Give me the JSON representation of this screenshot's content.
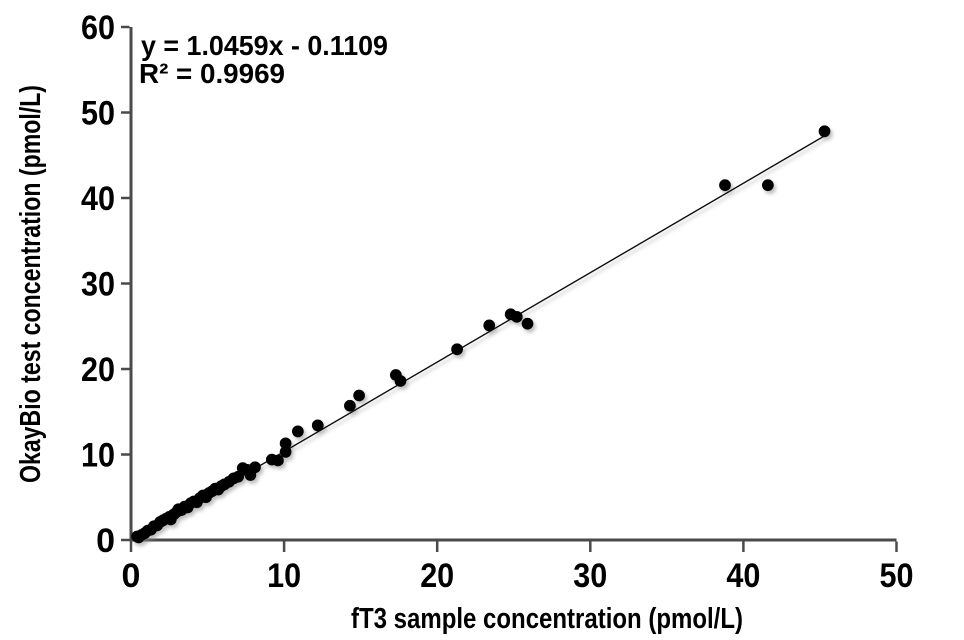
{
  "figure": {
    "background": "#ffffff"
  },
  "chart_data": {
    "type": "scatter",
    "title": "",
    "xlabel": "fT3 sample concentration (pmol/L)",
    "ylabel": "OkayBio test concentration (pmol/L)",
    "xlim": [
      0,
      50
    ],
    "ylim": [
      0,
      60
    ],
    "x_ticks": [
      0,
      10,
      20,
      30,
      40,
      50
    ],
    "y_ticks": [
      0,
      10,
      20,
      30,
      40,
      50,
      60
    ],
    "grid": false,
    "legend": "none",
    "point_color": "#000000",
    "axis_color": "#4a4a4a",
    "text_color": "#000000",
    "points": [
      [
        0.4,
        0.4
      ],
      [
        0.5,
        0.3
      ],
      [
        0.7,
        0.6
      ],
      [
        0.9,
        0.8
      ],
      [
        1.1,
        1.1
      ],
      [
        1.3,
        1.2
      ],
      [
        1.5,
        1.6
      ],
      [
        1.7,
        1.7
      ],
      [
        1.9,
        2.1
      ],
      [
        2.1,
        2.3
      ],
      [
        2.3,
        2.5
      ],
      [
        2.5,
        2.7
      ],
      [
        2.6,
        2.4
      ],
      [
        2.8,
        3.0
      ],
      [
        3.0,
        3.3
      ],
      [
        3.1,
        3.6
      ],
      [
        3.3,
        3.5
      ],
      [
        3.5,
        3.9
      ],
      [
        3.7,
        3.8
      ],
      [
        3.9,
        4.3
      ],
      [
        4.1,
        4.5
      ],
      [
        4.3,
        4.4
      ],
      [
        4.5,
        4.9
      ],
      [
        4.7,
        5.2
      ],
      [
        4.9,
        5.0
      ],
      [
        5.1,
        5.5
      ],
      [
        5.3,
        5.7
      ],
      [
        5.5,
        6.0
      ],
      [
        5.7,
        5.9
      ],
      [
        5.9,
        6.3
      ],
      [
        6.1,
        6.5
      ],
      [
        6.4,
        6.8
      ],
      [
        6.7,
        7.2
      ],
      [
        7.0,
        7.4
      ],
      [
        7.3,
        8.4
      ],
      [
        7.6,
        8.2
      ],
      [
        7.8,
        7.6
      ],
      [
        8.1,
        8.5
      ],
      [
        9.2,
        9.4
      ],
      [
        9.6,
        9.3
      ],
      [
        10.1,
        10.3
      ],
      [
        10.1,
        11.3
      ],
      [
        10.9,
        12.7
      ],
      [
        12.2,
        13.4
      ],
      [
        14.3,
        15.7
      ],
      [
        14.9,
        16.9
      ],
      [
        17.3,
        19.3
      ],
      [
        17.6,
        18.6
      ],
      [
        21.3,
        22.3
      ],
      [
        23.4,
        25.1
      ],
      [
        24.8,
        26.4
      ],
      [
        25.2,
        26.1
      ],
      [
        25.9,
        25.3
      ],
      [
        38.8,
        41.5
      ],
      [
        41.6,
        41.5
      ],
      [
        45.3,
        47.8
      ]
    ],
    "trendline": {
      "type": "linear",
      "slope": 1.0459,
      "intercept": -0.1109,
      "x_start": 0.3,
      "x_end": 45.3,
      "color": "#111111",
      "equation_label": "y = 1.0459x - 0.1109",
      "r2_label": "R² = 0.9969",
      "r2_value": 0.9969
    }
  }
}
